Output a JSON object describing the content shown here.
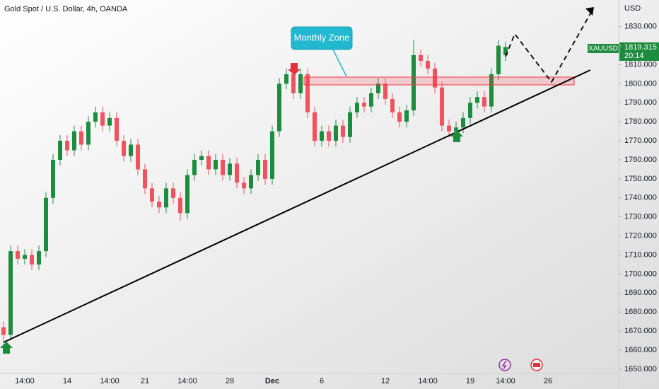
{
  "chart_data": {
    "type": "candlestick",
    "title": "Gold Spot / U.S. Dollar, 4h, OANDA",
    "currency": "USD",
    "symbol": "XAUUSD",
    "countdown": "20:14",
    "annotation": "Monthly Zone",
    "up_color": "#1e8c3f",
    "down_color": "#f0525f",
    "categories": [
      null,
      null,
      null,
      "14:00",
      null,
      null,
      null,
      null,
      null,
      "14",
      null,
      null,
      null,
      null,
      null,
      "14:00",
      null,
      null,
      null,
      null,
      "21",
      null,
      null,
      null,
      null,
      null,
      "14:00",
      null,
      null,
      null,
      null,
      null,
      "28",
      null,
      null,
      null,
      null,
      null,
      "Dec",
      null,
      null,
      null,
      null,
      null,
      null,
      "6",
      null,
      null,
      null,
      null,
      null,
      null,
      null,
      null,
      "12",
      null,
      null,
      null,
      null,
      null,
      "14:00",
      null,
      null,
      null,
      null,
      null,
      "19",
      null,
      null,
      null,
      null,
      "14:00",
      null,
      null,
      null,
      null,
      null,
      "26"
    ],
    "open": [
      1672,
      1668,
      1712,
      1708,
      1710,
      1705,
      1712,
      1740,
      1760,
      1770,
      1765,
      1775,
      1768,
      1780,
      1785,
      1778,
      1782,
      1770,
      1762,
      1768,
      1755,
      1745,
      1738,
      1735,
      1745,
      1740,
      1732,
      1752,
      1760,
      1762,
      1755,
      1760,
      1752,
      1758,
      1748,
      1745,
      1752,
      1760,
      1750,
      1775,
      1800,
      1805,
      1795,
      1805,
      1785,
      1770,
      1775,
      1770,
      1778,
      1772,
      1785,
      1790,
      1788,
      1795,
      1800,
      1792,
      1785,
      1780,
      1786,
      1815,
      1812,
      1808,
      1798,
      1778,
      1775,
      1777,
      1782,
      1790,
      1793,
      1788,
      1805,
      1815,
      null,
      null,
      null,
      null,
      null,
      null
    ],
    "high": [
      1675,
      1715,
      1715,
      1713,
      1713,
      1715,
      1743,
      1763,
      1773,
      1773,
      1778,
      1778,
      1783,
      1788,
      1788,
      1785,
      1785,
      1773,
      1771,
      1771,
      1758,
      1748,
      1741,
      1748,
      1748,
      1743,
      1755,
      1763,
      1765,
      1765,
      1763,
      1763,
      1761,
      1761,
      1751,
      1755,
      1763,
      1763,
      1778,
      1803,
      1808,
      1808,
      1808,
      1808,
      1788,
      1778,
      1778,
      1781,
      1781,
      1788,
      1793,
      1793,
      1798,
      1803,
      1803,
      1795,
      1788,
      1789,
      1823,
      1818,
      1815,
      1811,
      1801,
      1781,
      1780,
      1785,
      1793,
      1796,
      1796,
      1808,
      1823,
      1822,
      null,
      null,
      null,
      null,
      null,
      null
    ],
    "low": [
      1664,
      1665,
      1705,
      1705,
      1702,
      1702,
      1709,
      1737,
      1757,
      1762,
      1762,
      1765,
      1765,
      1777,
      1775,
      1775,
      1767,
      1759,
      1759,
      1752,
      1742,
      1735,
      1732,
      1732,
      1737,
      1728,
      1729,
      1749,
      1757,
      1752,
      1752,
      1749,
      1749,
      1745,
      1742,
      1742,
      1749,
      1747,
      1747,
      1772,
      1797,
      1792,
      1792,
      1782,
      1767,
      1767,
      1767,
      1767,
      1769,
      1769,
      1782,
      1785,
      1785,
      1792,
      1789,
      1782,
      1777,
      1777,
      1783,
      1809,
      1805,
      1795,
      1775,
      1772,
      1772,
      1774,
      1779,
      1787,
      1785,
      1785,
      1802,
      1812,
      null,
      null,
      null,
      null,
      null,
      null
    ],
    "close": [
      1668,
      1712,
      1708,
      1710,
      1705,
      1712,
      1740,
      1760,
      1770,
      1765,
      1775,
      1768,
      1780,
      1785,
      1778,
      1782,
      1770,
      1762,
      1768,
      1755,
      1745,
      1738,
      1735,
      1745,
      1740,
      1732,
      1752,
      1760,
      1762,
      1755,
      1760,
      1752,
      1758,
      1748,
      1745,
      1752,
      1760,
      1750,
      1775,
      1800,
      1805,
      1795,
      1805,
      1785,
      1770,
      1775,
      1770,
      1778,
      1772,
      1785,
      1790,
      1788,
      1795,
      1800,
      1792,
      1785,
      1780,
      1786,
      1815,
      1812,
      1808,
      1798,
      1778,
      1775,
      1777,
      1782,
      1790,
      1793,
      1788,
      1805,
      1820,
      1819.315,
      null,
      null,
      null,
      null,
      null,
      null
    ],
    "xlim": [
      -0.5,
      87
    ],
    "ylim": [
      1647,
      1844
    ],
    "yticks": [
      {
        "value": 1650,
        "label": "1650.000"
      },
      {
        "value": 1660,
        "label": "1660.000"
      },
      {
        "value": 1670,
        "label": "1670.000"
      },
      {
        "value": 1680,
        "label": "1680.000"
      },
      {
        "value": 1690,
        "label": "1690.000"
      },
      {
        "value": 1700,
        "label": "1700.000"
      },
      {
        "value": 1710,
        "label": "1710.000"
      },
      {
        "value": 1720,
        "label": "1720.000"
      },
      {
        "value": 1730,
        "label": "1730.000"
      },
      {
        "value": 1740,
        "label": "1740.000"
      },
      {
        "value": 1750,
        "label": "1750.000"
      },
      {
        "value": 1760,
        "label": "1760.000"
      },
      {
        "value": 1770,
        "label": "1770.000"
      },
      {
        "value": 1780,
        "label": "1780.000"
      },
      {
        "value": 1790,
        "label": "1790.000"
      },
      {
        "value": 1800,
        "label": "1800.000"
      },
      {
        "value": 1810,
        "label": "1810.000"
      },
      {
        "value": 1820,
        "label": "1820.000"
      },
      {
        "value": 1830,
        "label": "1830.000"
      }
    ]
  }
}
